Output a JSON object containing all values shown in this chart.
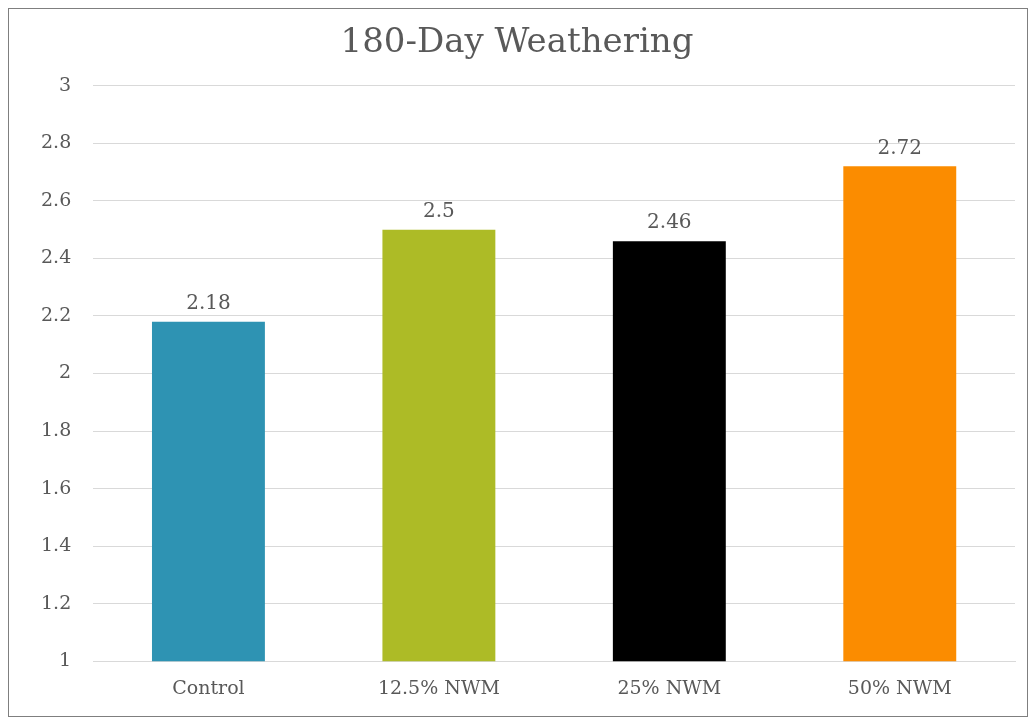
{
  "chart_data": {
    "type": "bar",
    "title": "180-Day Weathering",
    "categories": [
      "Control",
      "12.5% NWM",
      "25% NWM",
      "50% NWM"
    ],
    "values": [
      2.18,
      2.5,
      2.46,
      2.72
    ],
    "colors": [
      "#2e93b3",
      "#adbb26",
      "#000000",
      "#fb8c00"
    ],
    "ylim": [
      1,
      3
    ],
    "yticks": [
      1,
      1.2,
      1.4,
      1.6,
      1.8,
      2,
      2.2,
      2.4,
      2.6,
      2.8,
      3
    ],
    "grid": "y",
    "data_labels": true,
    "legend": false
  }
}
